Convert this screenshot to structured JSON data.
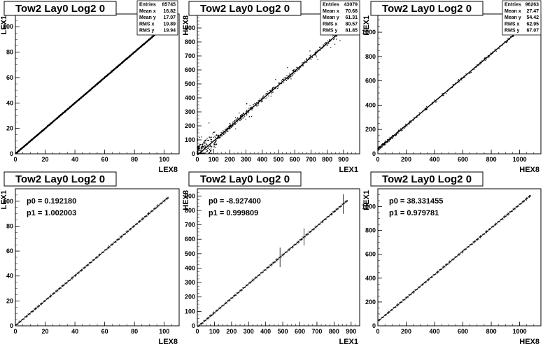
{
  "chart_data": [
    {
      "type": "scatter",
      "title": "Tow2 Lay0 Log2 0",
      "xlabel": "LEX8",
      "ylabel": "LEX1",
      "xlim": [
        0,
        110
      ],
      "ylim": [
        0,
        110
      ],
      "xticks": [
        0,
        20,
        40,
        60,
        80,
        100
      ],
      "yticks": [
        0,
        20,
        40,
        60,
        80,
        100
      ],
      "stats": [
        {
          "label": "Entries",
          "value": "85745"
        },
        {
          "label": "Mean x",
          "value": "16.82"
        },
        {
          "label": "Mean y",
          "value": "17.07"
        },
        {
          "label": "RMS x",
          "value": "19.89"
        },
        {
          "label": "RMS y",
          "value": "19.94"
        }
      ],
      "trend": {
        "slope": 1.0,
        "intercept": 0.0,
        "x_range": [
          0,
          103
        ]
      }
    },
    {
      "type": "scatter",
      "title": "Tow2 Lay0 Log2 0",
      "xlabel": "LEX1",
      "ylabel": "HEX8",
      "xlim": [
        0,
        1000
      ],
      "ylim": [
        0,
        1000
      ],
      "xticks": [
        0,
        100,
        200,
        300,
        400,
        500,
        600,
        700,
        800,
        900
      ],
      "yticks": [
        0,
        100,
        200,
        300,
        400,
        500,
        600,
        700,
        800,
        900
      ],
      "stats": [
        {
          "label": "Entries",
          "value": "43079"
        },
        {
          "label": "Mean x",
          "value": "70.68"
        },
        {
          "label": "Mean y",
          "value": "61.31"
        },
        {
          "label": "RMS x",
          "value": "80.57"
        },
        {
          "label": "RMS y",
          "value": "81.85"
        }
      ],
      "trend": {
        "slope": 1.0,
        "intercept": -9.0,
        "x_range": [
          0,
          900
        ]
      }
    },
    {
      "type": "scatter",
      "title": "Tow2 Lay0 Log2 0",
      "xlabel": "HEX8",
      "ylabel": "HEX1",
      "xlim": [
        0,
        1150
      ],
      "ylim": [
        0,
        1150
      ],
      "xticks": [
        0,
        200,
        400,
        600,
        800,
        1000
      ],
      "yticks": [
        0,
        200,
        400,
        600,
        800,
        1000
      ],
      "stats": [
        {
          "label": "Entries",
          "value": "96263"
        },
        {
          "label": "Mean x",
          "value": "27.47"
        },
        {
          "label": "Mean y",
          "value": "54.42"
        },
        {
          "label": "RMS x",
          "value": "62.95"
        },
        {
          "label": "RMS y",
          "value": "67.07"
        }
      ],
      "trend": {
        "slope": 0.98,
        "intercept": 38.3,
        "x_range": [
          0,
          1000
        ]
      }
    },
    {
      "type": "line",
      "title": "Tow2 Lay0 Log2 0",
      "xlabel": "LEX8",
      "ylabel": "LEX1",
      "xlim": [
        0,
        110
      ],
      "ylim": [
        0,
        110
      ],
      "xticks": [
        0,
        20,
        40,
        60,
        80,
        100
      ],
      "yticks": [
        0,
        20,
        40,
        60,
        80,
        100
      ],
      "fit": [
        {
          "label": "p0 = 0.192180"
        },
        {
          "label": "p1 = 1.002003"
        }
      ],
      "fit_params": {
        "p0": 0.19218,
        "p1": 1.002003,
        "x_range": [
          0,
          103
        ]
      }
    },
    {
      "type": "line",
      "title": "Tow2 Lay0 Log2 0",
      "xlabel": "LEX1",
      "ylabel": "HEX8",
      "xlim": [
        0,
        950
      ],
      "ylim": [
        0,
        950
      ],
      "xticks": [
        0,
        100,
        200,
        300,
        400,
        500,
        600,
        700,
        800,
        900
      ],
      "yticks": [
        0,
        100,
        200,
        300,
        400,
        500,
        600,
        700,
        800,
        900
      ],
      "fit": [
        {
          "label": "p0 = -8.927400"
        },
        {
          "label": "p1 = 0.999809"
        }
      ],
      "fit_params": {
        "p0": -8.9274,
        "p1": 0.999809,
        "x_range": [
          0,
          880
        ]
      }
    },
    {
      "type": "line",
      "title": "Tow2 Lay0 Log2 0",
      "xlabel": "HEX8",
      "ylabel": "HEX1",
      "xlim": [
        0,
        1150
      ],
      "ylim": [
        0,
        1150
      ],
      "xticks": [
        0,
        200,
        400,
        600,
        800,
        1000
      ],
      "yticks": [
        0,
        200,
        400,
        600,
        800,
        1000
      ],
      "fit": [
        {
          "label": "p0 = 38.331455"
        },
        {
          "label": "p1 = 0.979781"
        }
      ],
      "fit_params": {
        "p0": 38.331455,
        "p1": 0.979781,
        "x_range": [
          0,
          1080
        ]
      }
    }
  ]
}
